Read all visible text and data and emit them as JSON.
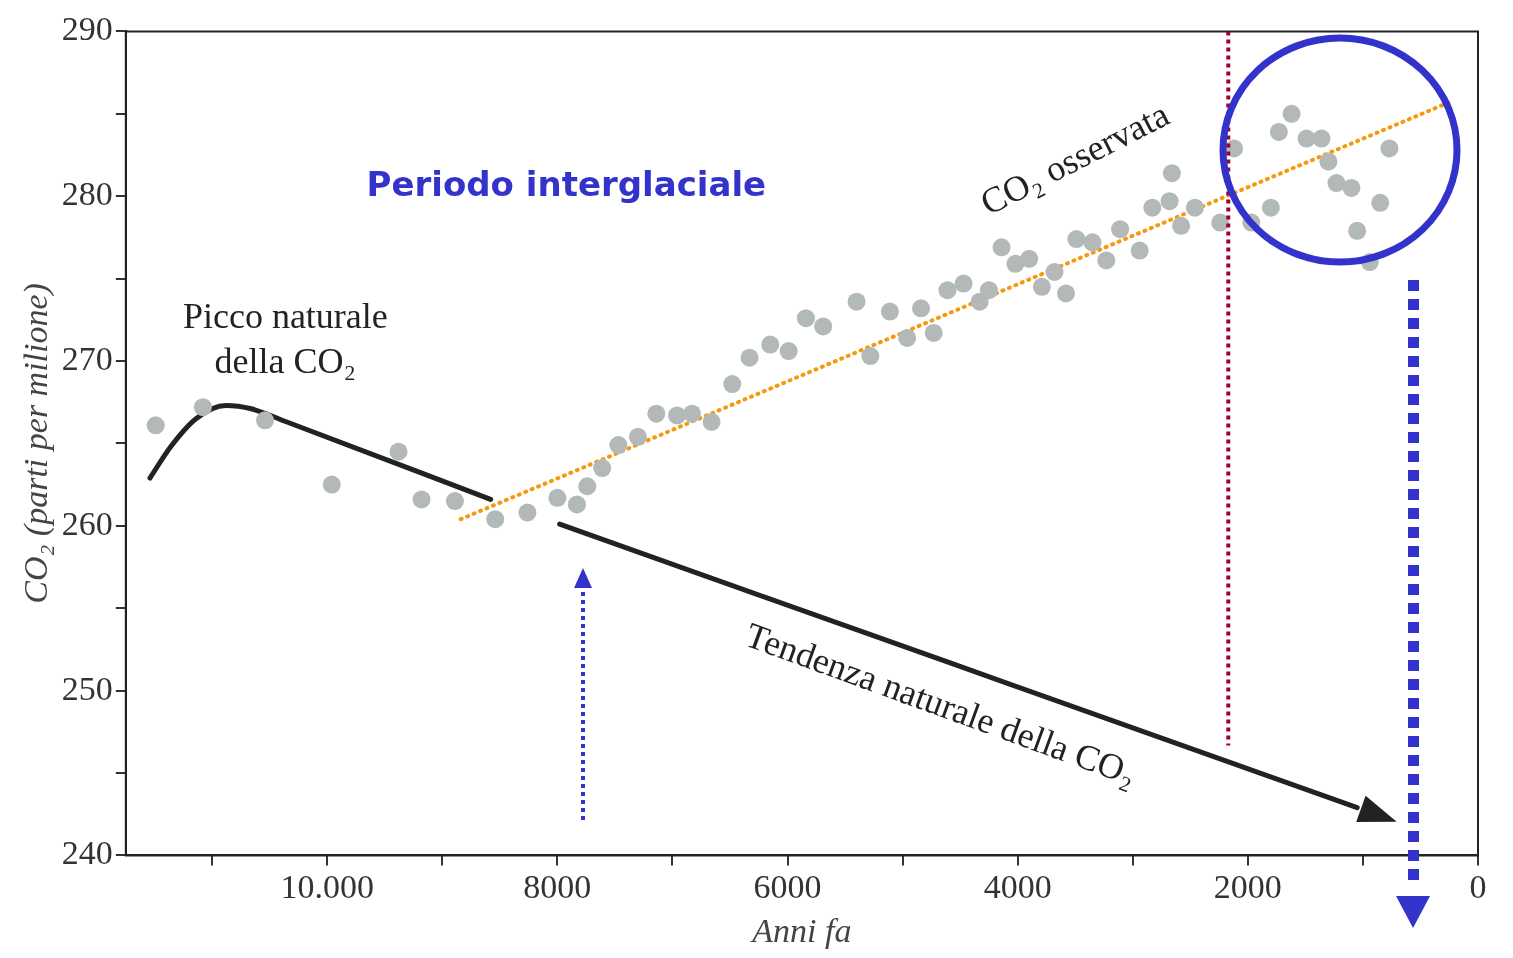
{
  "chart_data": {
    "type": "scatter",
    "xlabel": "Anni fa",
    "ylabel": "CO₂ (parti per milione)",
    "xlim": [
      11750,
      0
    ],
    "xticks": [
      {
        "value": 11000,
        "label": null
      },
      {
        "value": 10000,
        "label": "10.000"
      },
      {
        "value": 9000,
        "label": null
      },
      8000,
      {
        "value": 7000,
        "label": null
      },
      6000,
      {
        "value": 5000,
        "label": null
      },
      4000,
      {
        "value": 3000,
        "label": null
      },
      2000,
      {
        "value": 1000,
        "label": null
      },
      0
    ],
    "ylim": [
      240,
      290
    ],
    "yticks": [
      240,
      {
        "value": 245,
        "label": null
      },
      250,
      {
        "value": 255,
        "label": null
      },
      260,
      {
        "value": 265,
        "label": null
      },
      270,
      {
        "value": 275,
        "label": null
      },
      280,
      {
        "value": 285,
        "label": null
      },
      290
    ],
    "grid": false,
    "legend": false,
    "marker": "circle",
    "series": [
      {
        "name": "CO₂ osservata",
        "type": "scatter",
        "color": "#b3b8b8",
        "x": [
          11490,
          11080,
          10540,
          9960,
          9380,
          9180,
          8890,
          8540,
          8260,
          8000,
          7830,
          7740,
          7610,
          7470,
          7300,
          7140,
          6960,
          6830,
          6660,
          6480,
          6330,
          6150,
          5990,
          5840,
          5690,
          5400,
          5280,
          5110,
          4960,
          4840,
          4730,
          4610,
          4470,
          4330,
          4250,
          4140,
          4020,
          3900,
          3790,
          3680,
          3580,
          3490,
          3350,
          3230,
          3110,
          2940,
          2830,
          2680,
          2660,
          2580,
          2460,
          2240,
          2120,
          1970,
          1800,
          1730,
          1620,
          1490,
          1360,
          1300,
          1230,
          1100,
          1050,
          940,
          850,
          770
        ],
        "values": [
          266.1,
          267.2,
          266.4,
          262.5,
          264.5,
          261.6,
          261.5,
          260.4,
          260.8,
          261.7,
          261.3,
          262.4,
          263.5,
          264.9,
          265.4,
          266.8,
          266.7,
          266.8,
          266.3,
          268.6,
          270.2,
          271,
          270.6,
          272.6,
          272.1,
          273.6,
          270.3,
          273,
          271.4,
          273.2,
          271.7,
          274.3,
          274.7,
          273.6,
          274.3,
          276.9,
          275.9,
          276.2,
          274.5,
          275.4,
          274.1,
          277.4,
          277.2,
          276.1,
          278,
          276.7,
          279.3,
          279.7,
          281.4,
          278.2,
          279.3,
          278.4,
          282.9,
          278.4,
          279.3,
          283.9,
          285,
          283.5,
          283.5,
          282.1,
          280.8,
          280.5,
          277.9,
          276,
          279.6,
          282.9
        ]
      },
      {
        "type": "line",
        "marker": "none",
        "color": "#222222",
        "x": [
          11540,
          11360,
          11140,
          10880,
          10660,
          10350,
          8580
        ],
        "values": [
          262.9,
          264.8,
          266.5,
          267.3,
          267.1,
          266.3,
          261.6
        ]
      },
      {
        "type": "line",
        "marker": "none",
        "color": "#222222",
        "x": [
          7980,
          1050
        ],
        "values": [
          260.1,
          242.9
        ]
      },
      {
        "type": "line",
        "marker": "none",
        "color": "#f59a0e",
        "line_style": "dotted",
        "x": [
          8840,
          250
        ],
        "values": [
          260.4,
          285.7
        ]
      }
    ],
    "ref_lines": [
      {
        "axis": "x",
        "value": 2170,
        "color": "#a0002a",
        "line_style": "dotted"
      }
    ],
    "annotations": [
      "Picco naturale",
      "della CO₂",
      "Tendenza naturale della CO₂",
      "Periodo interglaciale"
    ]
  }
}
